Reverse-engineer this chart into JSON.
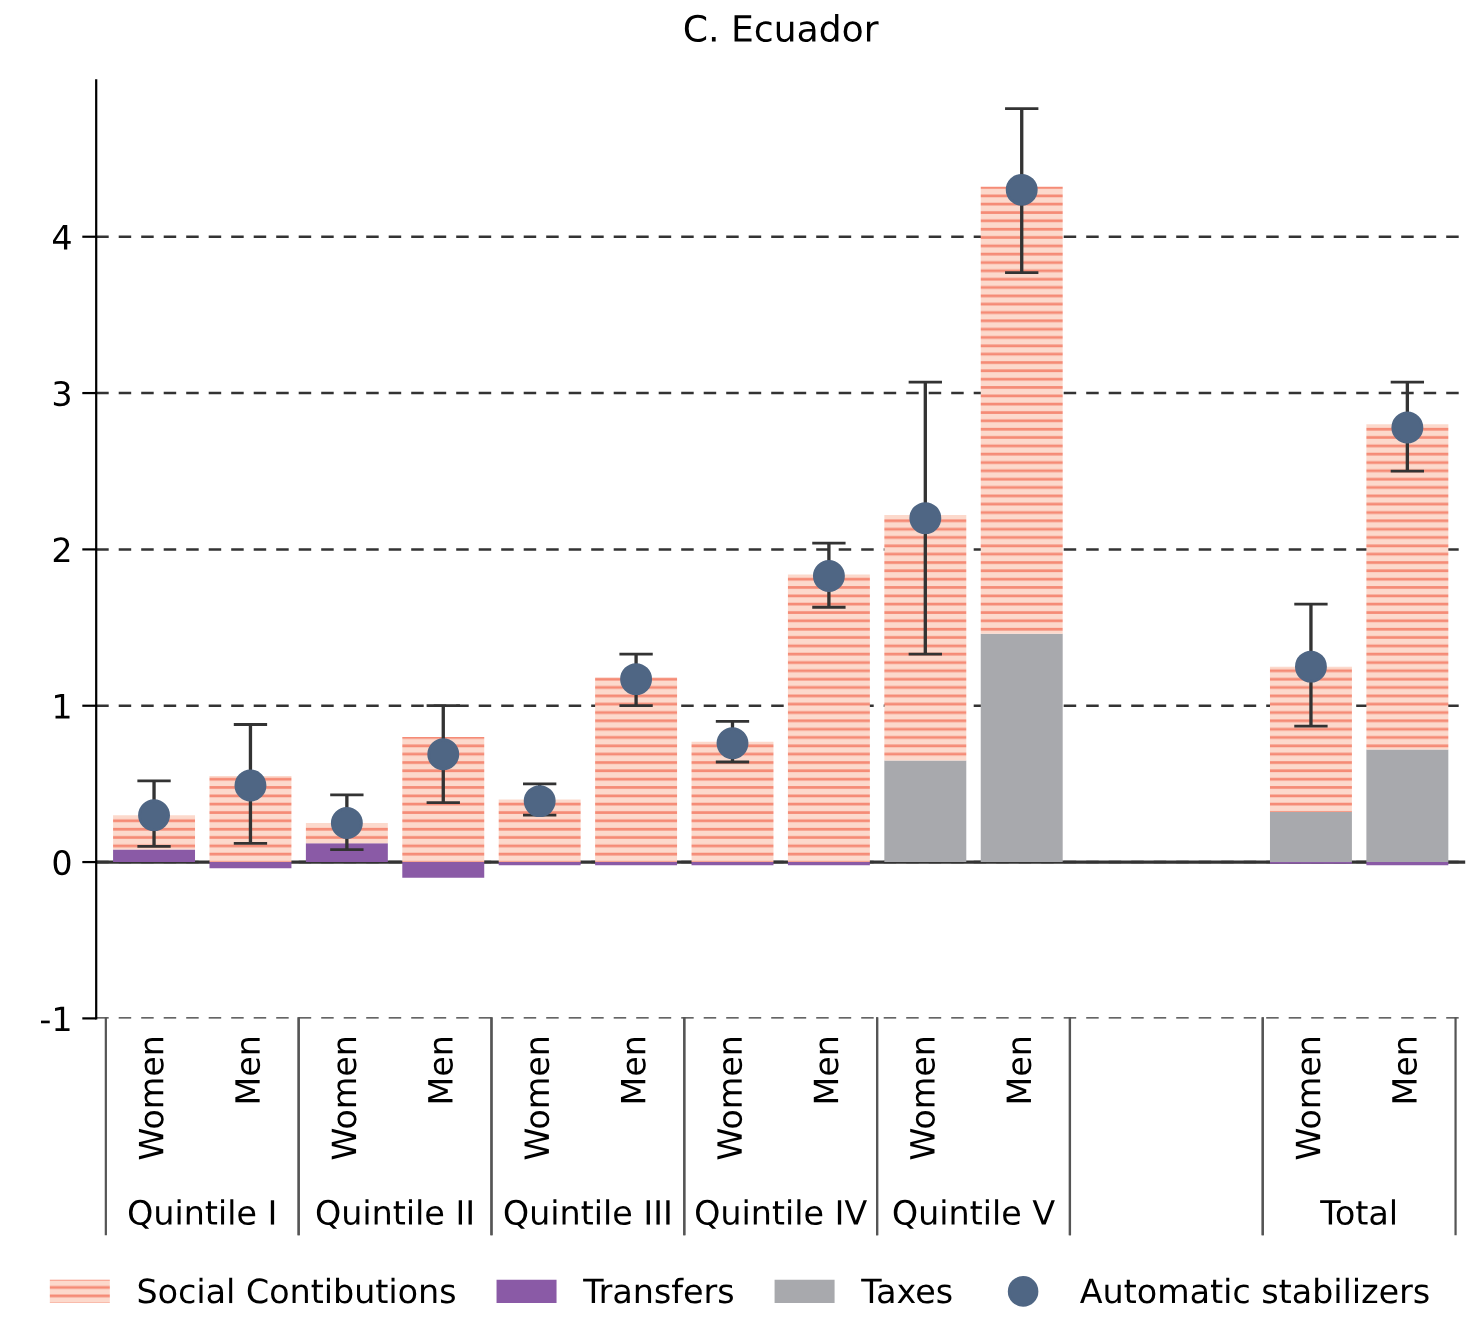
{
  "chart_data": {
    "type": "bar",
    "title": "C. Ecuador",
    "stacked": true,
    "categories": [
      "Women",
      "Men",
      "Women",
      "Men",
      "Women",
      "Men",
      "Women",
      "Men",
      "Women",
      "Men",
      null,
      null,
      "Women",
      "Men"
    ],
    "annotations": [
      "Quintile I",
      "Quintile II",
      "Quintile III",
      "Quintile IV",
      "Quintile V",
      "Total"
    ],
    "series": [
      {
        "name": "Taxes",
        "color": "#a8a9ad",
        "values": [
          0,
          0,
          0,
          0,
          0,
          0,
          0,
          0,
          0.65,
          1.46,
          null,
          null,
          0.32,
          0.72
        ]
      },
      {
        "name": "Transfers",
        "color": "#8a5aa6",
        "values": [
          0.08,
          -0.04,
          0.12,
          -0.1,
          -0.02,
          -0.02,
          -0.02,
          -0.02,
          0,
          0,
          null,
          null,
          -0.01,
          -0.02
        ]
      },
      {
        "name": "Social Contibutions",
        "color": "#f58b76",
        "values": [
          0.22,
          0.55,
          0.13,
          0.8,
          0.4,
          1.18,
          0.77,
          1.84,
          1.57,
          2.86,
          null,
          null,
          0.93,
          2.08
        ]
      },
      {
        "name": "Automatic stabilizers",
        "type": "scatter",
        "color": "#4f6684",
        "marker": "circle",
        "values": [
          0.3,
          0.49,
          0.25,
          0.69,
          0.39,
          1.17,
          0.76,
          1.83,
          2.2,
          4.3,
          null,
          null,
          1.25,
          2.78
        ],
        "errors": [
          [
            0.1,
            0.52
          ],
          [
            0.12,
            0.88
          ],
          [
            0.08,
            0.43
          ],
          [
            0.38,
            1.0
          ],
          [
            0.3,
            0.5
          ],
          [
            1.0,
            1.33
          ],
          [
            0.64,
            0.9
          ],
          [
            1.63,
            2.04
          ],
          [
            1.33,
            3.07
          ],
          [
            3.77,
            4.82
          ],
          null,
          null,
          [
            0.87,
            1.65
          ],
          [
            2.5,
            3.07
          ]
        ]
      }
    ],
    "ylim": [
      -1,
      5
    ],
    "yticks": [
      -1,
      0,
      1,
      2,
      3,
      4
    ],
    "grid": "y",
    "legend": "bottom",
    "ref_lines": [
      {
        "axis": "y",
        "value": 0,
        "color": "#333333"
      }
    ]
  }
}
